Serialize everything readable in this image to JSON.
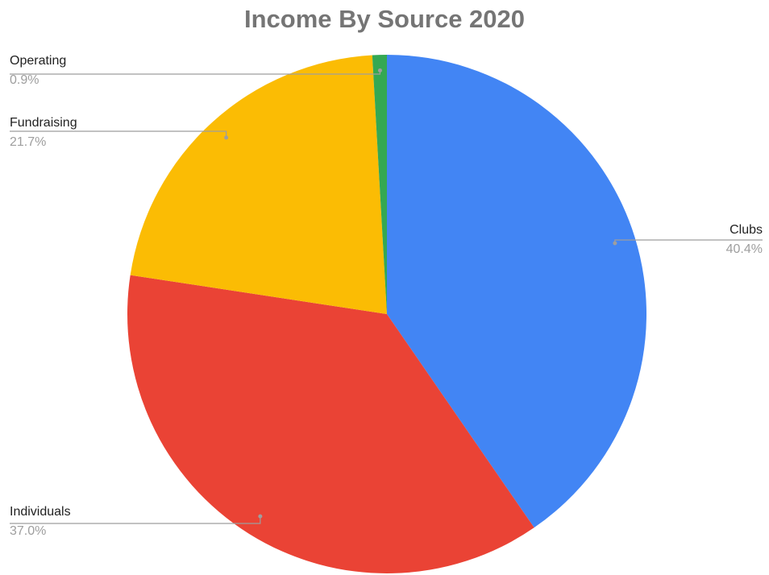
{
  "chart_data": {
    "type": "pie",
    "title": "Income By Source 2020",
    "slices": [
      {
        "label": "Clubs",
        "value": 40.4,
        "display": "40.4%",
        "color": "#4285f4"
      },
      {
        "label": "Individuals",
        "value": 37.0,
        "display": "37.0%",
        "color": "#ea4335"
      },
      {
        "label": "Fundraising",
        "value": 21.7,
        "display": "21.7%",
        "color": "#fbbc04"
      },
      {
        "label": "Operating",
        "value": 0.9,
        "display": "0.9%",
        "color": "#34a853"
      }
    ],
    "start_angle": "12 o'clock",
    "direction": "clockwise",
    "legend": "none",
    "label_style": "callout lines with label and percentage"
  }
}
